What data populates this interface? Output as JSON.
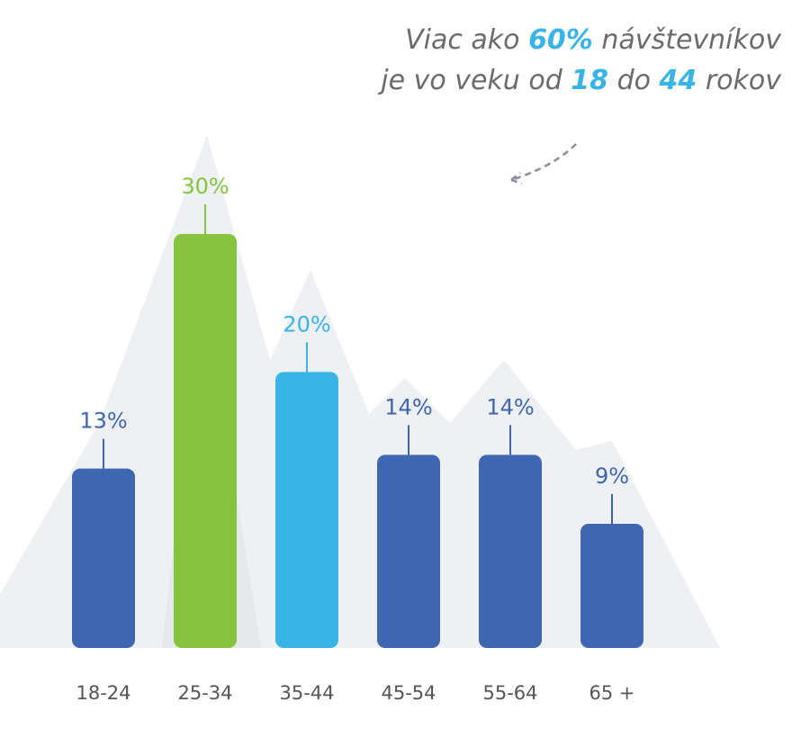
{
  "chart_data": {
    "type": "bar",
    "annotation": [
      [
        {
          "text": "Viac ako ",
          "emphasis": false
        },
        {
          "text": "60%",
          "emphasis": true
        },
        {
          "text": " návštevníkov",
          "emphasis": false
        }
      ],
      [
        {
          "text": "je vo veku od ",
          "emphasis": false
        },
        {
          "text": "18",
          "emphasis": true
        },
        {
          "text": " do ",
          "emphasis": false
        },
        {
          "text": "44",
          "emphasis": true
        },
        {
          "text": " rokov",
          "emphasis": false
        }
      ]
    ],
    "categories": [
      "18-24",
      "25-34",
      "35-44",
      "45-54",
      "55-64",
      "65 +"
    ],
    "values": [
      13,
      30,
      20,
      14,
      14,
      9
    ],
    "value_labels": [
      "13%",
      "30%",
      "20%",
      "14%",
      "14%",
      "9%"
    ],
    "colors": [
      "#3f66b0",
      "#86c440",
      "#38b4e6",
      "#3f66b0",
      "#3f66b0",
      "#3f66b0"
    ]
  }
}
